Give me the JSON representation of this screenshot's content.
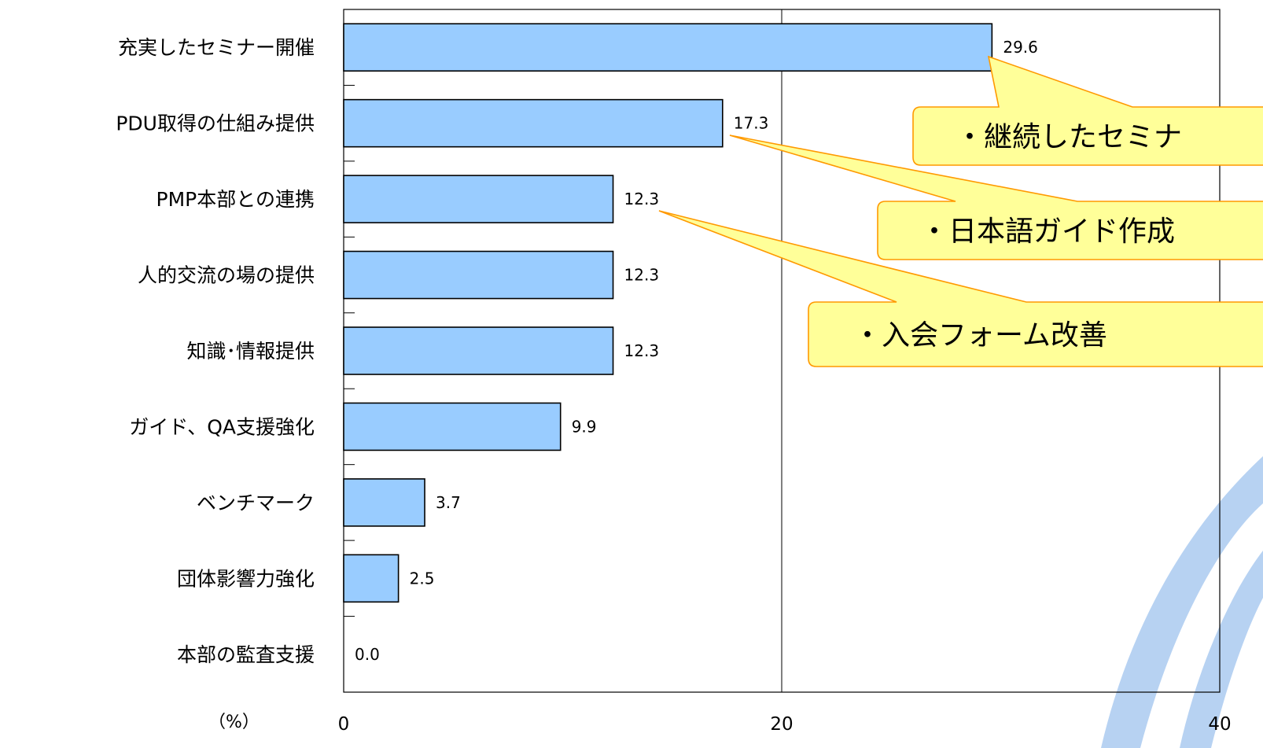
{
  "chart_data": {
    "type": "bar",
    "orientation": "horizontal",
    "categories": [
      "充実したセミナー開催",
      "PDU取得の仕組み提供",
      "PMP本部との連携",
      "人的交流の場の提供",
      "知識･情報提供",
      "ガイド、QA支援強化",
      "ベンチマーク",
      "団体影響力強化",
      "本部の監査支援"
    ],
    "values": [
      29.6,
      17.3,
      12.3,
      12.3,
      12.3,
      9.9,
      3.7,
      2.5,
      0.0
    ],
    "value_labels": [
      "29.6",
      "17.3",
      "12.3",
      "12.3",
      "12.3",
      "9.9",
      "3.7",
      "2.5",
      "0.0"
    ],
    "xlim": [
      0,
      40
    ],
    "x_ticks": [
      "0",
      "20",
      "40"
    ],
    "x_unit": "（%）",
    "grid": true,
    "colors": {
      "bar": "#99ccff",
      "callout_fill": "#ffff99",
      "callout_border": "#ff9900"
    },
    "annotations": [
      {
        "text": "・継続したセミナ",
        "target_index": 0
      },
      {
        "text": "・日本語ガイド作成",
        "target_index": 1
      },
      {
        "text": "・入会フォーム改善",
        "target_index": 2
      }
    ]
  }
}
